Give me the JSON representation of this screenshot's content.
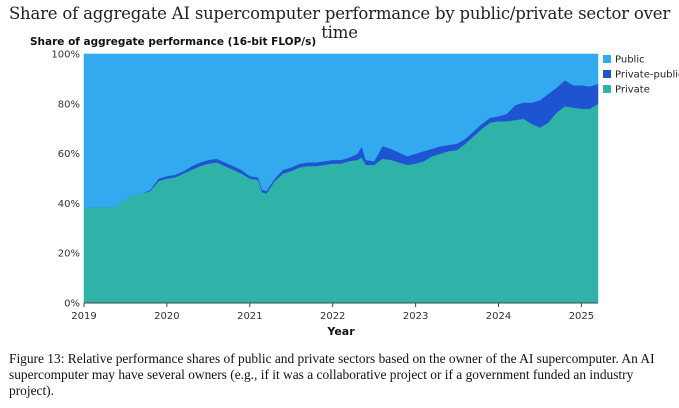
{
  "figure_title": "Share of aggregate AI supercomputer performance by public/private sector over time",
  "caption": "Figure 13: Relative performance shares of public and private sectors based on the owner of the AI supercomputer. An AI supercomputer may have several owners (e.g., if it was a collaborative project or if a government funded an industry project).",
  "colors": {
    "public": "#33aaf0",
    "private_public": "#1e54d2",
    "private": "#2fb3a8"
  },
  "chart_data": {
    "type": "area",
    "stacked": true,
    "normalized": true,
    "ylabel": "Share of aggregate performance (16-bit FLOP/s)",
    "xlabel": "Year",
    "x_ticks": [
      "2019",
      "2020",
      "2021",
      "2022",
      "2023",
      "2024",
      "2025"
    ],
    "y_ticks": [
      "0%",
      "20%",
      "40%",
      "60%",
      "80%",
      "100%"
    ],
    "xlim": [
      2019.0,
      2025.2
    ],
    "ylim": [
      0,
      100
    ],
    "grid": true,
    "legend_position": "top-right",
    "legend": [
      "Public",
      "Private-public",
      "Private"
    ],
    "x": [
      2019.0,
      2019.2,
      2019.3,
      2019.4,
      2019.5,
      2019.6,
      2019.7,
      2019.8,
      2019.9,
      2020.0,
      2020.1,
      2020.2,
      2020.3,
      2020.4,
      2020.5,
      2020.6,
      2020.7,
      2020.8,
      2020.9,
      2021.0,
      2021.1,
      2021.15,
      2021.2,
      2021.3,
      2021.4,
      2021.5,
      2021.6,
      2021.7,
      2021.8,
      2021.9,
      2022.0,
      2022.1,
      2022.2,
      2022.3,
      2022.35,
      2022.4,
      2022.5,
      2022.6,
      2022.7,
      2022.8,
      2022.9,
      2023.0,
      2023.1,
      2023.2,
      2023.3,
      2023.4,
      2023.5,
      2023.6,
      2023.7,
      2023.8,
      2023.9,
      2024.0,
      2024.1,
      2024.2,
      2024.3,
      2024.4,
      2024.5,
      2024.6,
      2024.7,
      2024.8,
      2024.9,
      2025.0,
      2025.1,
      2025.15,
      2025.2
    ],
    "series": [
      {
        "name": "Private",
        "values": [
          38.5,
          38.5,
          38.5,
          39.0,
          41.5,
          43.5,
          44.0,
          45.0,
          49.0,
          50.0,
          50.5,
          52.0,
          53.5,
          55.0,
          56.0,
          56.5,
          55.0,
          53.5,
          52.0,
          50.0,
          49.5,
          44.5,
          44.0,
          49.0,
          52.0,
          53.0,
          54.5,
          55.0,
          55.0,
          55.5,
          56.0,
          56.0,
          57.0,
          57.5,
          58.5,
          55.5,
          55.5,
          58.0,
          57.5,
          56.5,
          55.5,
          56.0,
          57.0,
          59.0,
          60.0,
          61.0,
          61.5,
          64.0,
          67.0,
          70.0,
          72.5,
          73.0,
          73.0,
          73.5,
          74.0,
          72.0,
          70.5,
          72.5,
          76.5,
          79.0,
          78.5,
          78.0,
          78.0,
          79.0,
          80.0
        ]
      },
      {
        "name": "Private-public",
        "values": [
          0,
          0,
          0,
          0,
          0,
          0,
          0,
          0.5,
          1.0,
          1.0,
          1.0,
          1.0,
          1.5,
          1.5,
          1.5,
          1.5,
          1.5,
          1.5,
          1.5,
          1.0,
          1.0,
          1.0,
          1.0,
          1.0,
          1.5,
          1.5,
          1.5,
          1.5,
          1.5,
          1.5,
          1.5,
          1.5,
          1.5,
          2.5,
          4.5,
          2.0,
          1.5,
          5.0,
          4.5,
          4.0,
          3.5,
          4.0,
          4.0,
          3.0,
          3.0,
          2.5,
          2.5,
          2.0,
          2.0,
          2.0,
          2.0,
          2.0,
          3.0,
          6.0,
          6.5,
          8.5,
          11.0,
          11.5,
          10.0,
          10.5,
          9.0,
          9.5,
          9.0,
          8.5,
          8.0
        ]
      },
      {
        "name": "Public",
        "values": [
          61.5,
          61.5,
          61.5,
          61.0,
          58.5,
          56.5,
          56.0,
          54.5,
          50.0,
          49.0,
          48.5,
          47.0,
          45.0,
          43.5,
          42.5,
          42.0,
          43.5,
          45.0,
          46.5,
          49.0,
          49.5,
          54.5,
          55.0,
          50.0,
          46.5,
          45.5,
          44.0,
          43.5,
          43.5,
          43.0,
          42.5,
          42.5,
          41.5,
          40.0,
          37.0,
          42.5,
          43.0,
          37.0,
          38.0,
          39.5,
          41.0,
          40.0,
          39.0,
          38.0,
          37.0,
          36.5,
          36.0,
          34.0,
          31.0,
          28.0,
          25.5,
          25.0,
          24.0,
          20.5,
          19.5,
          19.5,
          18.5,
          16.0,
          13.5,
          10.5,
          12.5,
          12.5,
          13.0,
          12.5,
          12.0
        ]
      }
    ]
  }
}
